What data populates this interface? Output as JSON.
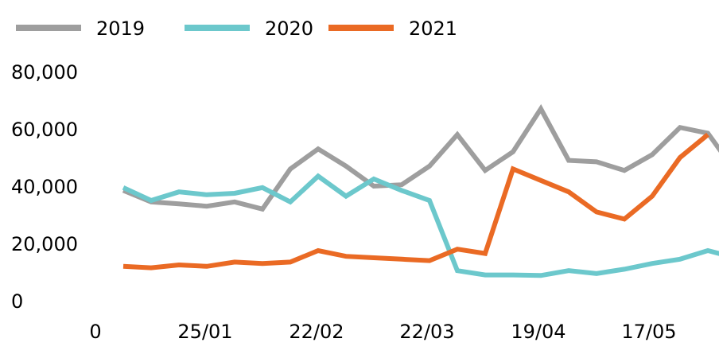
{
  "chart_data": {
    "type": "line",
    "x_tick_labels": [
      "0",
      "25/01",
      "22/02",
      "22/03",
      "19/04",
      "17/05"
    ],
    "y_tick_labels": [
      "0",
      "20,000",
      "40,000",
      "60,000",
      "80,000"
    ],
    "ylim": [
      0,
      80000
    ],
    "legend_position": "top",
    "grid": false,
    "x": [
      1,
      2,
      3,
      4,
      5,
      6,
      7,
      8,
      9,
      10,
      11,
      12,
      13,
      14,
      15,
      16,
      17,
      18,
      19,
      20,
      21,
      22,
      23
    ],
    "series": [
      {
        "name": "2019",
        "color": "#9e9e9e",
        "values": [
          38500,
          34500,
          33800,
          33000,
          34500,
          32000,
          46000,
          53000,
          47000,
          40000,
          40500,
          47000,
          58000,
          45500,
          52000,
          67000,
          49000,
          48500,
          45500,
          51000,
          60500,
          58500,
          45000
        ]
      },
      {
        "name": "2020",
        "color": "#6cc8cc",
        "values": [
          39500,
          35000,
          38000,
          37000,
          37500,
          39500,
          34500,
          43500,
          36500,
          42500,
          38500,
          35000,
          10500,
          9000,
          9000,
          8800,
          10500,
          9500,
          11000,
          13000,
          14500,
          17500,
          15000
        ]
      },
      {
        "name": "2021",
        "color": "#ea6a24",
        "values": [
          12000,
          11500,
          12500,
          12000,
          13500,
          13000,
          13500,
          17500,
          15500,
          15000,
          14500,
          14000,
          18000,
          16500,
          46000,
          42000,
          38000,
          31000,
          28500,
          36500,
          50000,
          58000,
          null
        ]
      }
    ]
  }
}
